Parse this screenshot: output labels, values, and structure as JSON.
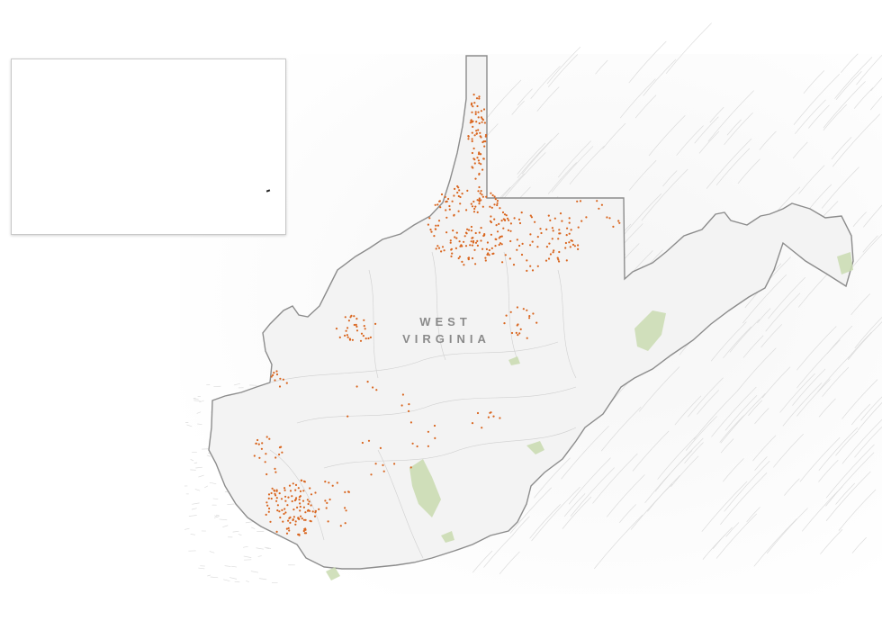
{
  "map": {
    "state_label_line1": "WEST",
    "state_label_line2": "VIRGINIA",
    "colors": {
      "background": "#ffffff",
      "land_fill": "#f3f3f3",
      "border": "#8c8c8c",
      "terrain": "#dddddd",
      "forest": "#c9dbb0",
      "well_dots": "#d9651e"
    },
    "layers": [
      "state-outline",
      "terrain-hatching",
      "parks",
      "well-dots"
    ]
  },
  "inset_map": {
    "visible": true
  }
}
